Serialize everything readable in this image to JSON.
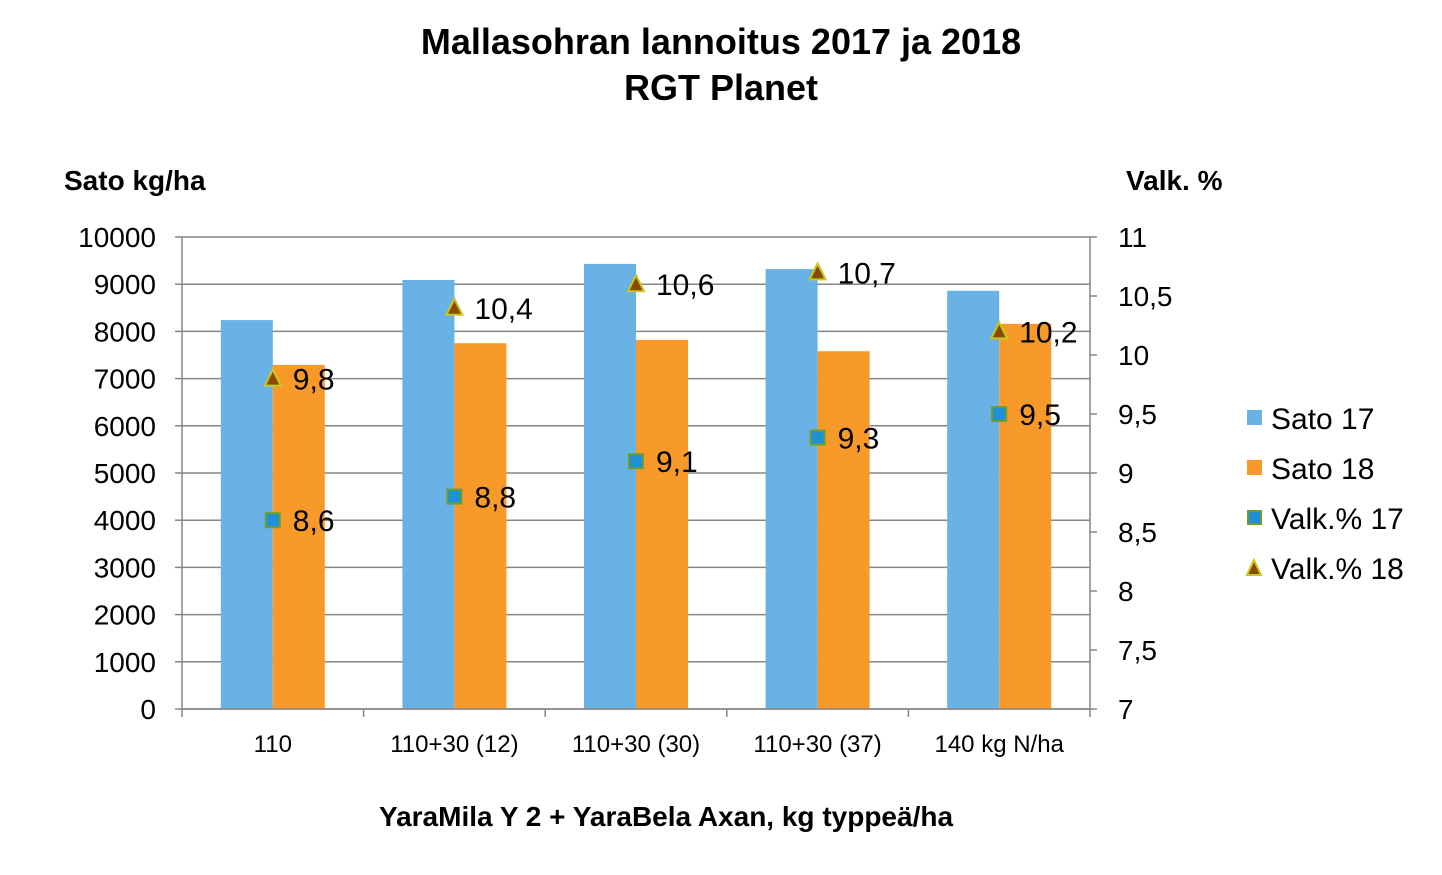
{
  "chart_data": {
    "type": "bar",
    "title": [
      "Mallasohran lannoitus 2017 ja 2018",
      "RGT Planet"
    ],
    "ylabel": "Sato kg/ha",
    "y2label": "Valk. %",
    "xlabel": "YaraMila Y 2 + YaraBela Axan, kg typpeä/ha",
    "categories": [
      "110",
      "110+30 (12)",
      "110+30 (30)",
      "110+30 (37)",
      "140 kg N/ha"
    ],
    "ylim": [
      0,
      10000
    ],
    "yticks": [
      "0",
      "1000",
      "2000",
      "3000",
      "4000",
      "5000",
      "6000",
      "7000",
      "8000",
      "9000",
      "10000"
    ],
    "y2lim": [
      7,
      11
    ],
    "y2ticks": [
      "7",
      "7,5",
      "8",
      "8,5",
      "9",
      "9,5",
      "10",
      "10,5",
      "11"
    ],
    "grid": true,
    "legend_position": "right",
    "series": [
      {
        "name": "Sato 17",
        "type": "bar",
        "axis": "left",
        "color": "#69B2E6",
        "values": [
          8240,
          9090,
          9430,
          9320,
          8860
        ]
      },
      {
        "name": "Sato 18",
        "type": "bar",
        "axis": "left",
        "color": "#F79A2A",
        "values": [
          7290,
          7750,
          7820,
          7580,
          8160
        ]
      },
      {
        "name": "Valk.% 17",
        "type": "scatter",
        "marker": "square",
        "axis": "right",
        "color": "#1F8FD6",
        "edge": "#6E9E2A",
        "values": [
          8.6,
          8.8,
          9.1,
          9.3,
          9.5
        ],
        "labels": [
          "8,6",
          "8,8",
          "9,1",
          "9,3",
          "9,5"
        ]
      },
      {
        "name": "Valk.% 18",
        "type": "scatter",
        "marker": "triangle",
        "axis": "right",
        "color": "#8B4A00",
        "edge": "#C8C820",
        "values": [
          9.8,
          10.4,
          10.6,
          10.7,
          10.2
        ],
        "labels": [
          "9,8",
          "10,4",
          "10,6",
          "10,7",
          "10,2"
        ]
      }
    ]
  }
}
